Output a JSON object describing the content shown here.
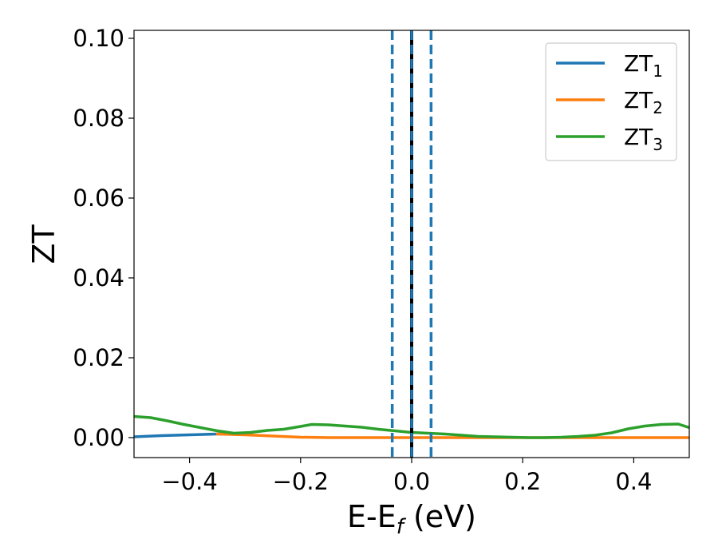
{
  "chart_data": {
    "type": "line",
    "xlabel": "E-E",
    "xlabel_sub": "f",
    "xlabel_unit": " (eV)",
    "ylabel": "ZT",
    "xlim": [
      -0.5,
      0.5
    ],
    "ylim": [
      -0.005,
      0.102
    ],
    "x_ticks": [
      -0.4,
      -0.2,
      0.0,
      0.2,
      0.4
    ],
    "x_tick_labels": [
      "−0.4",
      "−0.2",
      "0.0",
      "0.2",
      "0.4"
    ],
    "y_ticks": [
      0.0,
      0.02,
      0.04,
      0.06,
      0.08,
      0.1
    ],
    "y_tick_labels": [
      "0.00",
      "0.02",
      "0.04",
      "0.06",
      "0.08",
      "0.10"
    ],
    "grid": false,
    "legend_position": "top-right",
    "vlines": [
      {
        "x": -0.035,
        "style": "dashed",
        "color": "#1f77b4"
      },
      {
        "x": 0.0,
        "style": "solid",
        "color": "#000000"
      },
      {
        "x": 0.0,
        "style": "dashed",
        "color": "#1f77b4"
      },
      {
        "x": 0.035,
        "style": "dashed",
        "color": "#1f77b4"
      }
    ],
    "series": [
      {
        "name": "ZT",
        "name_sub": "1",
        "color": "#1f77b4",
        "x": [
          -0.5,
          -0.45,
          -0.4,
          -0.35,
          -0.3
        ],
        "y": [
          0.0002,
          0.0005,
          0.0007,
          0.0009,
          0.001
        ]
      },
      {
        "name": "ZT",
        "name_sub": "2",
        "color": "#ff7f0e",
        "x": [
          -0.35,
          -0.3,
          -0.25,
          -0.2,
          -0.15,
          -0.1,
          -0.05,
          0.0,
          0.05,
          0.1,
          0.15,
          0.2,
          0.25,
          0.3,
          0.35,
          0.4,
          0.45,
          0.5
        ],
        "y": [
          0.0009,
          0.0007,
          0.0004,
          0.0001,
          0.0,
          0.0,
          0.0,
          0.0,
          0.0,
          0.0,
          0.0,
          0.0,
          0.0,
          0.0,
          0.0,
          0.0,
          0.0,
          0.0
        ]
      },
      {
        "name": "ZT",
        "name_sub": "3",
        "color": "#2ca02c",
        "x": [
          -0.5,
          -0.47,
          -0.44,
          -0.41,
          -0.38,
          -0.35,
          -0.32,
          -0.29,
          -0.26,
          -0.23,
          -0.2,
          -0.18,
          -0.15,
          -0.12,
          -0.09,
          -0.06,
          -0.03,
          0.0,
          0.03,
          0.06,
          0.09,
          0.12,
          0.15,
          0.18,
          0.21,
          0.24,
          0.27,
          0.3,
          0.33,
          0.36,
          0.39,
          0.42,
          0.45,
          0.48,
          0.5
        ],
        "y": [
          0.0053,
          0.005,
          0.0042,
          0.0033,
          0.0025,
          0.0017,
          0.0011,
          0.0013,
          0.0018,
          0.0021,
          0.0028,
          0.0033,
          0.0032,
          0.0029,
          0.0026,
          0.0021,
          0.0017,
          0.0013,
          0.0011,
          0.0009,
          0.0006,
          0.0003,
          0.0002,
          0.0001,
          0.0,
          0.0,
          0.0001,
          0.0003,
          0.0006,
          0.0012,
          0.0022,
          0.0029,
          0.0033,
          0.0034,
          0.0025
        ]
      }
    ]
  }
}
